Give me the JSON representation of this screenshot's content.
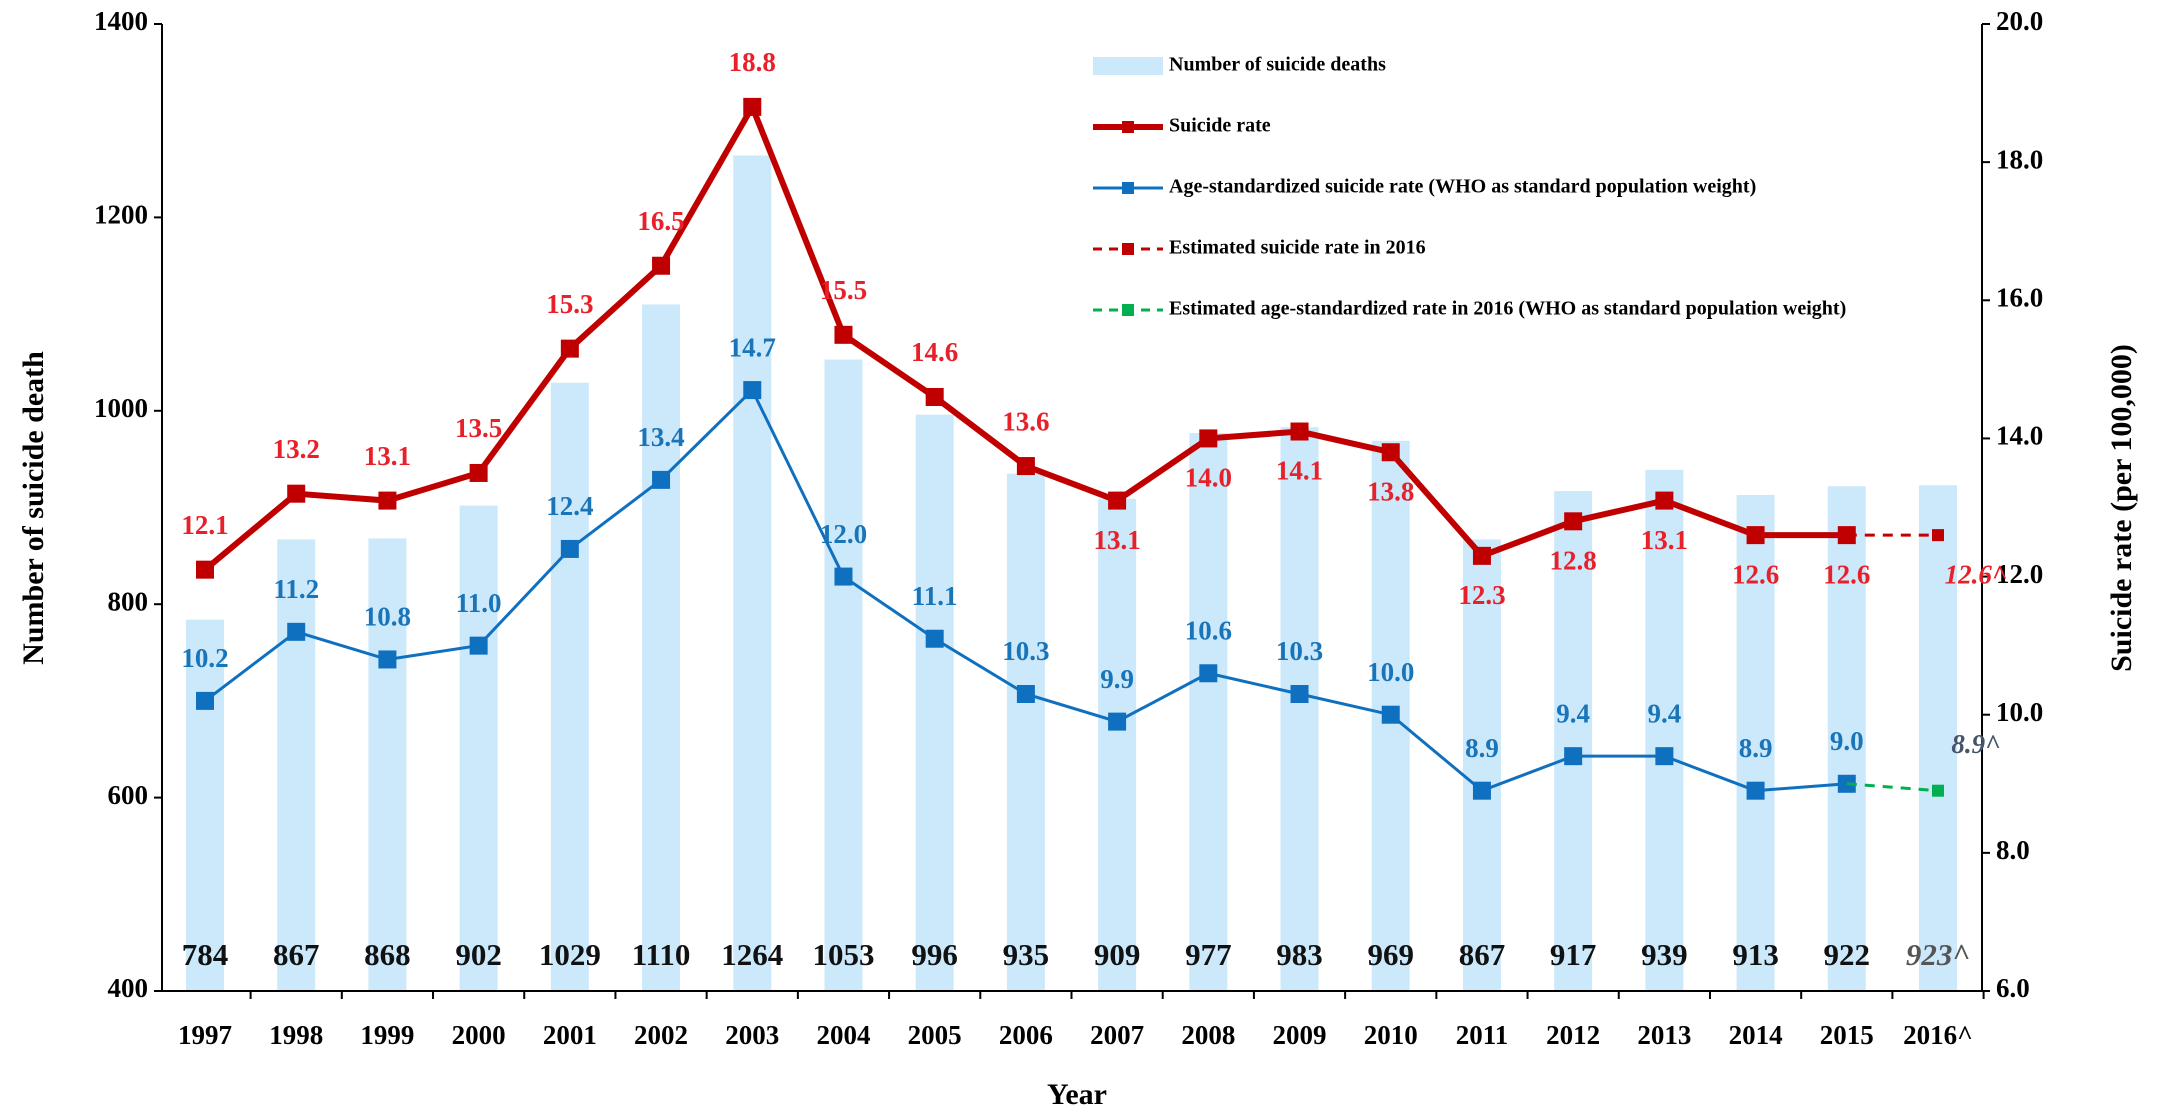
{
  "chart_data": {
    "type": "bar_line",
    "x_label": "Year",
    "y_label": "Number of suicide death",
    "y2_label": "Suicide rate (per 100,000)",
    "categories": [
      "1997",
      "1998",
      "1999",
      "2000",
      "2001",
      "2002",
      "2003",
      "2004",
      "2005",
      "2006",
      "2007",
      "2008",
      "2009",
      "2010",
      "2011",
      "2012",
      "2013",
      "2014",
      "2015",
      "2016^"
    ],
    "ylim": [
      400,
      1400
    ],
    "yticks": [
      400,
      600,
      800,
      1000,
      1200,
      1400
    ],
    "y2lim": [
      6,
      20
    ],
    "y2ticks": [
      {
        "value": 6,
        "label": "6.0"
      },
      {
        "value": 8,
        "label": "8.0"
      },
      {
        "value": 10,
        "label": "10.0"
      },
      {
        "value": 12,
        "label": "12.0"
      },
      {
        "value": 14,
        "label": "14.0"
      },
      {
        "value": 16,
        "label": "16.0"
      },
      {
        "value": 18,
        "label": "18.0"
      },
      {
        "value": 20,
        "label": "20.0"
      }
    ],
    "series": [
      {
        "name": "Number of suicide deaths",
        "kind": "bar",
        "color": "#cce9fb",
        "label_color": "#111111",
        "values": [
          784,
          867,
          868,
          902,
          1029,
          1110,
          1264,
          1053,
          996,
          935,
          909,
          977,
          983,
          969,
          867,
          917,
          939,
          913,
          922,
          923
        ],
        "value_labels": [
          null,
          null,
          null,
          null,
          null,
          null,
          null,
          null,
          null,
          null,
          null,
          null,
          null,
          null,
          null,
          null,
          null,
          null,
          null,
          "923^"
        ]
      },
      {
        "name": "Suicide rate",
        "kind": "line",
        "axis": "y2",
        "color": "#c00000",
        "label_color": "#e8202a",
        "values": [
          12.1,
          13.2,
          13.1,
          13.5,
          15.3,
          16.5,
          18.8,
          15.5,
          14.6,
          13.6,
          13.1,
          14.0,
          14.1,
          13.8,
          12.3,
          12.8,
          13.1,
          12.6,
          12.6,
          null
        ],
        "value_labels": [
          "12.1",
          "13.2",
          "13.1",
          "13.5",
          "15.3",
          "16.5",
          "18.8",
          "15.5",
          "14.6",
          "13.6",
          "13.1",
          "14.0",
          "14.1",
          "13.8",
          "12.3",
          "12.8",
          "13.1",
          "12.6",
          "12.6",
          null
        ]
      },
      {
        "name": "Age-standardized suicide rate (WHO as standard population weight)",
        "kind": "line",
        "axis": "y2",
        "color": "#1070c0",
        "label_color": "#1a74b8",
        "values": [
          10.2,
          11.2,
          10.8,
          11.0,
          12.4,
          13.4,
          14.7,
          12.0,
          11.1,
          10.3,
          9.9,
          10.6,
          10.3,
          10.0,
          8.9,
          9.4,
          9.4,
          8.9,
          9.0,
          null
        ],
        "value_labels": [
          "10.2",
          "11.2",
          "10.8",
          "11.0",
          "12.4",
          "13.4",
          "14.7",
          "12.0",
          "11.1",
          "10.3",
          "9.9",
          "10.6",
          "10.3",
          "10.0",
          "8.9",
          "9.4",
          "9.4",
          "8.9",
          "9.0",
          null
        ]
      },
      {
        "name": "Estimated suicide rate in 2016",
        "kind": "line",
        "dashed": true,
        "axis": "y2",
        "color": "#c00000",
        "label_color": "#e8202a",
        "values": [
          null,
          null,
          null,
          null,
          null,
          null,
          null,
          null,
          null,
          null,
          null,
          null,
          null,
          null,
          null,
          null,
          null,
          null,
          12.6,
          12.6
        ],
        "value_labels": [
          null,
          null,
          null,
          null,
          null,
          null,
          null,
          null,
          null,
          null,
          null,
          null,
          null,
          null,
          null,
          null,
          null,
          null,
          null,
          "12.6^"
        ]
      },
      {
        "name": "Estimated age-standardized rate in 2016  (WHO as standard population weight)",
        "kind": "line",
        "dashed": true,
        "axis": "y2",
        "color": "#00b050",
        "label_color": "#44546a",
        "values": [
          null,
          null,
          null,
          null,
          null,
          null,
          null,
          null,
          null,
          null,
          null,
          null,
          null,
          null,
          null,
          null,
          null,
          null,
          9.0,
          8.9
        ],
        "value_labels": [
          null,
          null,
          null,
          null,
          null,
          null,
          null,
          null,
          null,
          null,
          null,
          null,
          null,
          null,
          null,
          null,
          null,
          null,
          null,
          "8.9^"
        ]
      }
    ]
  }
}
